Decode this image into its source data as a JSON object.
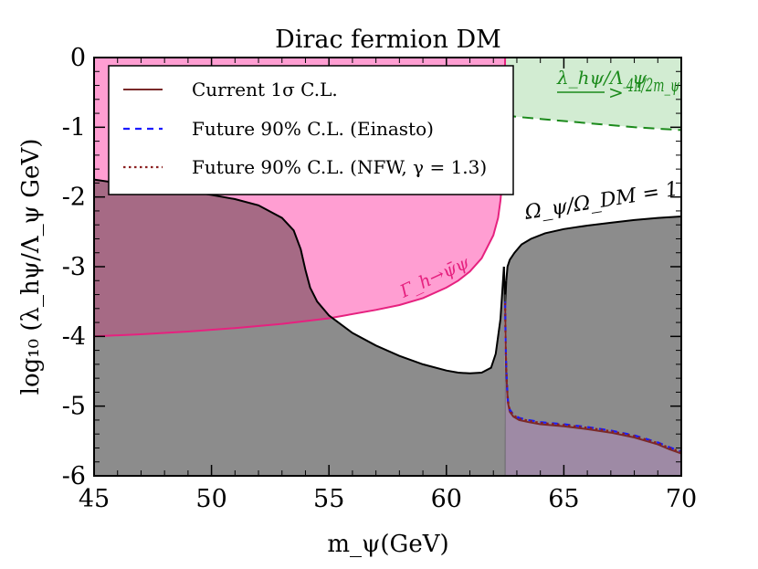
{
  "chart_data": {
    "type": "area",
    "title": "Dirac fermion DM",
    "xlabel": "m_ψ(GeV)",
    "ylabel": "log₁₀ (λ_hψ/Λ_ψ GeV)",
    "xlim": [
      45,
      70
    ],
    "ylim": [
      -6,
      0
    ],
    "x_ticks": [
      "45",
      "50",
      "55",
      "60",
      "65",
      "70"
    ],
    "y_ticks": [
      "0",
      "-1",
      "-2",
      "-3",
      "-4",
      "-5",
      "-6"
    ],
    "legend": [
      {
        "label": "Current 1σ C.L.",
        "color": "#7a2a2a",
        "style": "solid"
      },
      {
        "label": "Future 90% C.L. (Einasto)",
        "color": "#1a1aff",
        "style": "dashed"
      },
      {
        "label": "Future 90% C.L. (NFW, γ = 1.3)",
        "color": "#8b2020",
        "style": "dotted"
      }
    ],
    "annotations": {
      "relic": "Ω_ψ/Ω_DM = 1",
      "higgs_width": "Γ_h→ψ̄ψ",
      "pert_lhs": "λ_hψ/Λ_ψ",
      "pert_op": ">",
      "pert_rhs": "4π/2m_ψ"
    },
    "colors": {
      "relic_fill": "#8c8c8c",
      "higgs_fill": "#ff9ed2",
      "overlap_fill": "#a66a85",
      "higgs_line": "#e6217f",
      "pert_fill": "#d2ecd2",
      "pert_line": "#1b8a1b",
      "current_line": "#7a2a2a",
      "future_einasto": "#1a1aff",
      "future_nfw": "#8b2020",
      "future_fill": "#9e8aa5"
    },
    "relic_curve": {
      "x": [
        45,
        46,
        47,
        48,
        49,
        50,
        51,
        52,
        53,
        53.5,
        53.8,
        54.0,
        54.2,
        54.5,
        55,
        56,
        57,
        58,
        59,
        60,
        60.5,
        61,
        61.5,
        61.9,
        62.1,
        62.3,
        62.45
      ],
      "y": [
        -1.75,
        -1.8,
        -1.84,
        -1.88,
        -1.92,
        -1.97,
        -2.03,
        -2.12,
        -2.3,
        -2.48,
        -2.75,
        -3.05,
        -3.3,
        -3.5,
        -3.7,
        -3.95,
        -4.13,
        -4.28,
        -4.4,
        -4.49,
        -4.52,
        -4.53,
        -4.52,
        -4.45,
        -4.25,
        -3.75,
        -3.0
      ]
    },
    "relic_curve_right": {
      "x": [
        62.55,
        62.6,
        62.7,
        62.9,
        63.2,
        63.6,
        64.2,
        65,
        66,
        67,
        68,
        69,
        70
      ],
      "y": [
        -3.2,
        -3.0,
        -2.9,
        -2.8,
        -2.68,
        -2.6,
        -2.52,
        -2.46,
        -2.41,
        -2.37,
        -2.33,
        -2.3,
        -2.28
      ]
    },
    "higgs_width_curve": {
      "x": [
        45,
        47,
        49,
        51,
        53,
        55,
        57,
        58,
        59,
        60,
        60.5,
        61,
        61.5,
        62,
        62.2,
        62.3,
        62.4,
        62.45,
        62.5
      ],
      "y": [
        -4.0,
        -3.97,
        -3.93,
        -3.88,
        -3.82,
        -3.74,
        -3.62,
        -3.55,
        -3.45,
        -3.3,
        -3.2,
        -3.07,
        -2.88,
        -2.55,
        -2.3,
        -2.05,
        -1.7,
        -1.2,
        0
      ]
    },
    "perturbativity_curve": {
      "x": [
        62.5,
        63,
        64,
        65,
        66,
        67,
        68,
        69,
        70
      ],
      "y": [
        -0.83,
        -0.85,
        -0.88,
        -0.91,
        -0.94,
        -0.97,
        -1.0,
        -1.02,
        -1.04
      ]
    },
    "current_1sigma": {
      "x": [
        62.5,
        62.52,
        62.55,
        62.58,
        62.62,
        62.7,
        62.85,
        63.1,
        63.5,
        64,
        65,
        66,
        67,
        68,
        69,
        69.5,
        70
      ],
      "y": [
        -3.55,
        -4.15,
        -4.5,
        -4.75,
        -4.95,
        -5.08,
        -5.15,
        -5.2,
        -5.23,
        -5.26,
        -5.29,
        -5.33,
        -5.38,
        -5.45,
        -5.55,
        -5.62,
        -5.68
      ]
    },
    "future_einasto": {
      "x": [
        62.5,
        62.52,
        62.55,
        62.58,
        62.62,
        62.7,
        62.85,
        63.1,
        63.5,
        64,
        65,
        66,
        67,
        68,
        69,
        69.5,
        70
      ],
      "y": [
        -3.5,
        -4.1,
        -4.46,
        -4.72,
        -4.92,
        -5.05,
        -5.12,
        -5.17,
        -5.2,
        -5.23,
        -5.26,
        -5.3,
        -5.35,
        -5.42,
        -5.52,
        -5.59,
        -5.65
      ]
    },
    "future_nfw": {
      "x": [
        62.5,
        62.52,
        62.55,
        62.58,
        62.62,
        62.7,
        62.85,
        63.1,
        63.5,
        64,
        65,
        66,
        67,
        68,
        69,
        69.5,
        70
      ],
      "y": [
        -3.52,
        -4.12,
        -4.48,
        -4.73,
        -4.93,
        -5.06,
        -5.13,
        -5.18,
        -5.21,
        -5.24,
        -5.27,
        -5.31,
        -5.36,
        -5.43,
        -5.53,
        -5.6,
        -5.66
      ]
    }
  }
}
